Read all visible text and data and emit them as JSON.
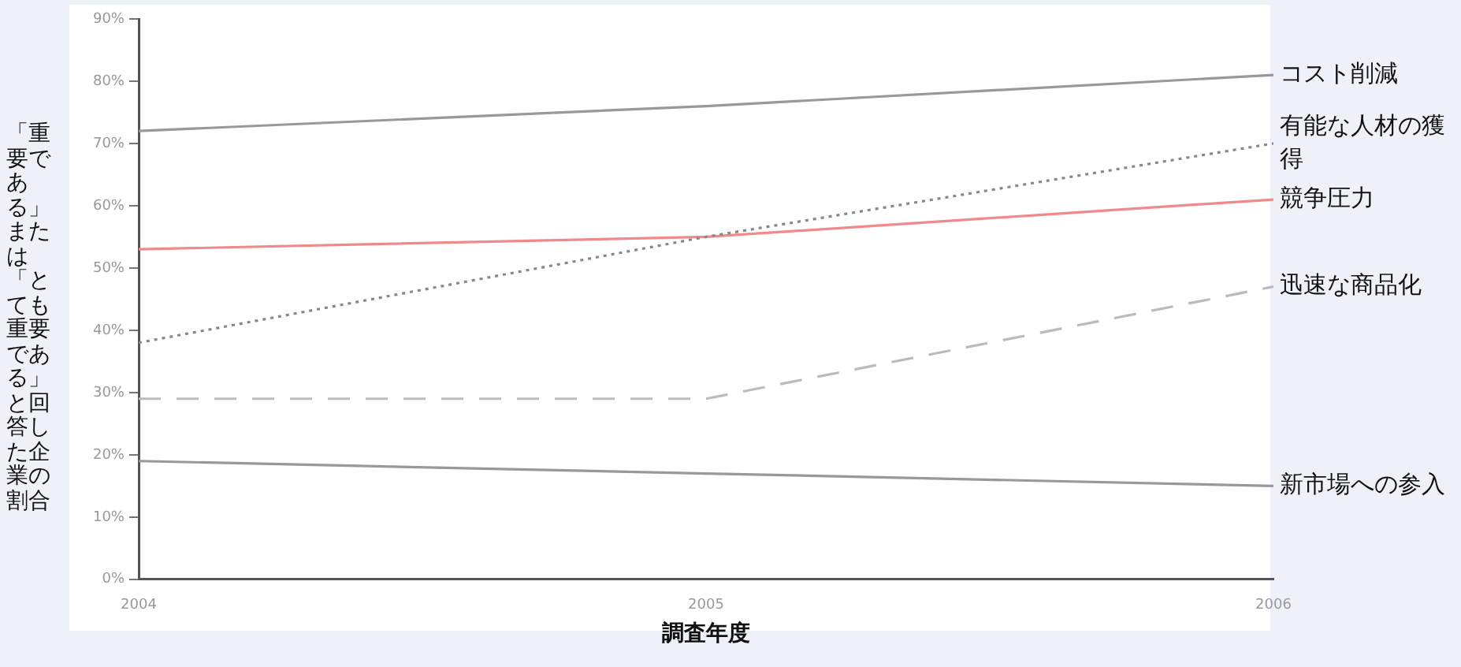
{
  "chart_data": {
    "type": "line",
    "xlabel": "調査年度",
    "ylabel": "「重要である」または「とても重要である」と回答した企業の割合",
    "x": [
      2004,
      2005,
      2006
    ],
    "xlim": [
      2004,
      2006
    ],
    "xticks": [
      2004,
      2005,
      2006
    ],
    "ylim": [
      0,
      90
    ],
    "yticks": [
      {
        "value": 0,
        "label": "0%"
      },
      {
        "value": 10,
        "label": "10%"
      },
      {
        "value": 20,
        "label": "20%"
      },
      {
        "value": 30,
        "label": "30%"
      },
      {
        "value": 40,
        "label": "40%"
      },
      {
        "value": 50,
        "label": "50%"
      },
      {
        "value": 60,
        "label": "60%"
      },
      {
        "value": 70,
        "label": "70%"
      },
      {
        "value": 80,
        "label": "80%"
      },
      {
        "value": 90,
        "label": "90%"
      }
    ],
    "grid": false,
    "legend": false,
    "marker": "none",
    "series": [
      {
        "name": "コスト削減",
        "color": "#999999",
        "line_style": "solid",
        "values": [
          72,
          76,
          81
        ]
      },
      {
        "name": "有能な人材の獲得",
        "color": "#888888",
        "line_style": "dotted",
        "values": [
          38,
          55,
          70
        ]
      },
      {
        "name": "競争圧力",
        "color": "#f08a8a",
        "line_style": "solid",
        "values": [
          53,
          55,
          61
        ]
      },
      {
        "name": "迅速な商品化",
        "color": "#bbbbbb",
        "line_style": "dashed",
        "values": [
          29,
          29,
          47
        ]
      },
      {
        "name": "新市場への参入",
        "color": "#999999",
        "line_style": "solid",
        "values": [
          19,
          17,
          15
        ]
      }
    ]
  }
}
